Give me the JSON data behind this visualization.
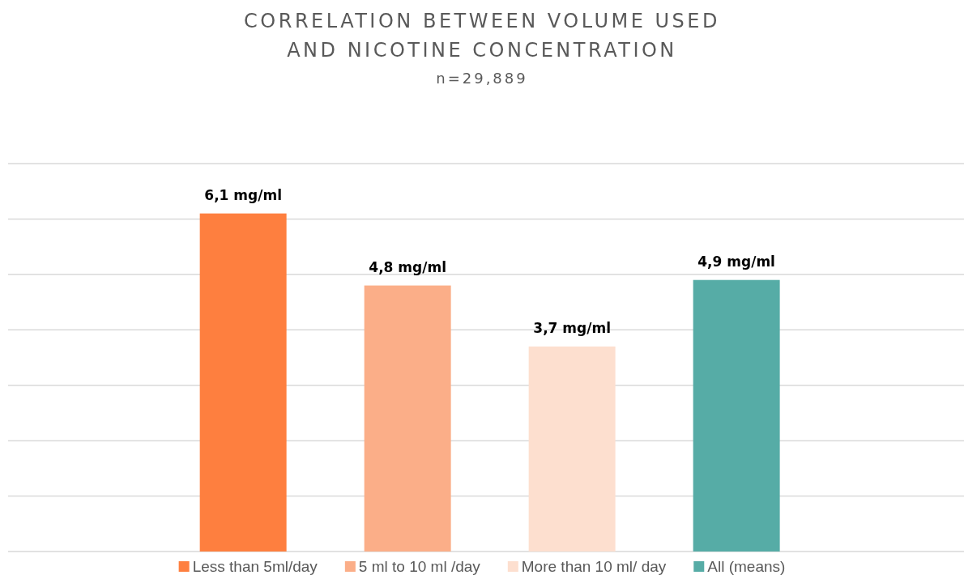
{
  "chart_data": {
    "type": "bar",
    "title": "CORRELATION BETWEEN VOLUME USED AND NICOTINE CONCENTRATION",
    "subtitle": "n=29,889",
    "categories": [
      null,
      null,
      null,
      null
    ],
    "series": [
      {
        "name": "Less than 5ml/day",
        "color": "#fe7f3f",
        "values": [
          6.1,
          null,
          null,
          null
        ],
        "value_labels": [
          "6,1 mg/ml",
          null,
          null,
          null
        ]
      },
      {
        "name": "5 ml to 10 ml /day",
        "color": "#fbae88",
        "values": [
          null,
          4.8,
          null,
          null
        ],
        "value_labels": [
          null,
          "4,8 mg/ml",
          null,
          null
        ]
      },
      {
        "name": "More than 10 ml/ day",
        "color": "#fddfcf",
        "values": [
          null,
          null,
          3.7,
          null
        ],
        "value_labels": [
          null,
          null,
          "3,7 mg/ml",
          null
        ]
      },
      {
        "name": "All (means)",
        "color": "#56aca6",
        "values": [
          null,
          null,
          null,
          4.9
        ],
        "value_labels": [
          null,
          null,
          null,
          "4,9 mg/ml"
        ]
      }
    ],
    "stacked": true,
    "ylim": [
      0,
      7
    ],
    "yticks": [
      {
        "value": 0,
        "label": null
      },
      {
        "value": 1,
        "label": null
      },
      {
        "value": 2,
        "label": null
      },
      {
        "value": 3,
        "label": null
      },
      {
        "value": 4,
        "label": null
      },
      {
        "value": 5,
        "label": null
      },
      {
        "value": 6,
        "label": null
      },
      {
        "value": 7,
        "label": null
      }
    ],
    "grid": "y",
    "legend": "bottom",
    "tick_labels": false
  }
}
